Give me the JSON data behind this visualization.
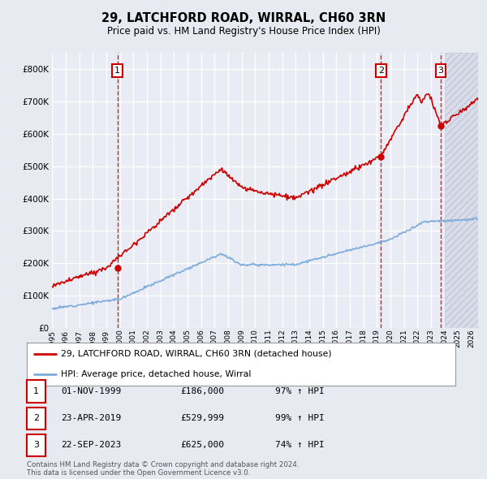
{
  "title": "29, LATCHFORD ROAD, WIRRAL, CH60 3RN",
  "subtitle": "Price paid vs. HM Land Registry's House Price Index (HPI)",
  "ylim": [
    0,
    850000
  ],
  "yticks": [
    0,
    100000,
    200000,
    300000,
    400000,
    500000,
    600000,
    700000,
    800000
  ],
  "ytick_labels": [
    "£0",
    "£100K",
    "£200K",
    "£300K",
    "£400K",
    "£500K",
    "£600K",
    "£700K",
    "£800K"
  ],
  "background_color": "#e8eaf2",
  "plot_bg_color": "#eaecf5",
  "grid_color": "#ffffff",
  "sale_points": [
    {
      "date": 1999.83,
      "price": 186000,
      "label": "1"
    },
    {
      "date": 2019.31,
      "price": 529999,
      "label": "2"
    },
    {
      "date": 2023.73,
      "price": 625000,
      "label": "3"
    }
  ],
  "legend_entries": [
    {
      "label": "29, LATCHFORD ROAD, WIRRAL, CH60 3RN (detached house)",
      "color": "#cc0000"
    },
    {
      "label": "HPI: Average price, detached house, Wirral",
      "color": "#7aabdc"
    }
  ],
  "table_rows": [
    {
      "num": "1",
      "date": "01-NOV-1999",
      "price": "£186,000",
      "hpi": "97% ↑ HPI"
    },
    {
      "num": "2",
      "date": "23-APR-2019",
      "price": "£529,999",
      "hpi": "99% ↑ HPI"
    },
    {
      "num": "3",
      "date": "22-SEP-2023",
      "price": "£625,000",
      "hpi": "74% ↑ HPI"
    }
  ],
  "footer": "Contains HM Land Registry data © Crown copyright and database right 2024.\nThis data is licensed under the Open Government Licence v3.0.",
  "hatch_region_start": 2024.0,
  "xmin": 1995.0,
  "xmax": 2026.5,
  "xticks": [
    1995,
    1996,
    1997,
    1998,
    1999,
    2000,
    2001,
    2002,
    2003,
    2004,
    2005,
    2006,
    2007,
    2008,
    2009,
    2010,
    2011,
    2012,
    2013,
    2014,
    2015,
    2016,
    2017,
    2018,
    2019,
    2020,
    2021,
    2022,
    2023,
    2024,
    2025,
    2026
  ]
}
